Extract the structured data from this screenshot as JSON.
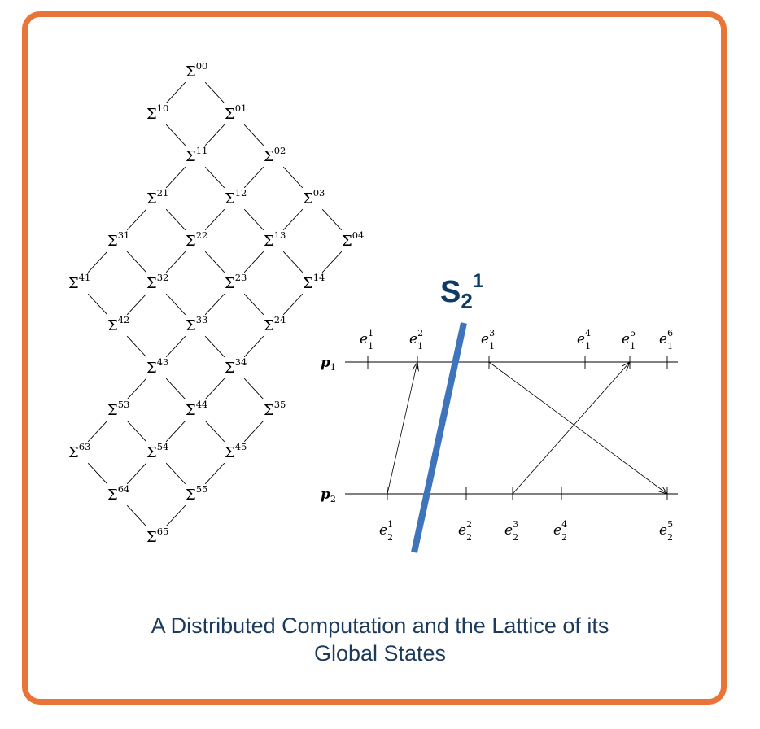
{
  "colors": {
    "frame": "#E87537",
    "cut_line": "#3E74BC",
    "cut_label": "#0E3B66",
    "caption": "#1B3A5C",
    "ink": "#000000"
  },
  "lattice": {
    "symbol": "Σ",
    "nodes": [
      "00",
      "10",
      "01",
      "11",
      "02",
      "21",
      "12",
      "03",
      "31",
      "22",
      "13",
      "04",
      "41",
      "32",
      "23",
      "14",
      "42",
      "33",
      "24",
      "43",
      "34",
      "53",
      "44",
      "35",
      "63",
      "54",
      "45",
      "64",
      "55",
      "65"
    ]
  },
  "computation": {
    "processes": [
      {
        "name": "p",
        "index": "1"
      },
      {
        "name": "p",
        "index": "2"
      }
    ],
    "events_p1": [
      {
        "name": "e",
        "sub": "1",
        "sup": "1"
      },
      {
        "name": "e",
        "sub": "1",
        "sup": "2"
      },
      {
        "name": "e",
        "sub": "1",
        "sup": "3"
      },
      {
        "name": "e",
        "sub": "1",
        "sup": "4"
      },
      {
        "name": "e",
        "sub": "1",
        "sup": "5"
      },
      {
        "name": "e",
        "sub": "1",
        "sup": "6"
      }
    ],
    "events_p2": [
      {
        "name": "e",
        "sub": "2",
        "sup": "1"
      },
      {
        "name": "e",
        "sub": "2",
        "sup": "2"
      },
      {
        "name": "e",
        "sub": "2",
        "sup": "3"
      },
      {
        "name": "e",
        "sub": "2",
        "sup": "4"
      },
      {
        "name": "e",
        "sub": "2",
        "sup": "5"
      }
    ],
    "messages": [
      {
        "from": "e21",
        "to": "e12"
      },
      {
        "from": "e13",
        "to": "e25"
      },
      {
        "from": "e23",
        "to": "e15"
      }
    ],
    "cut": {
      "label": "S",
      "sub": "2",
      "sup": "1"
    }
  },
  "caption": {
    "line1": "A Distributed Computation and the Lattice of its",
    "line2": "Global States"
  }
}
